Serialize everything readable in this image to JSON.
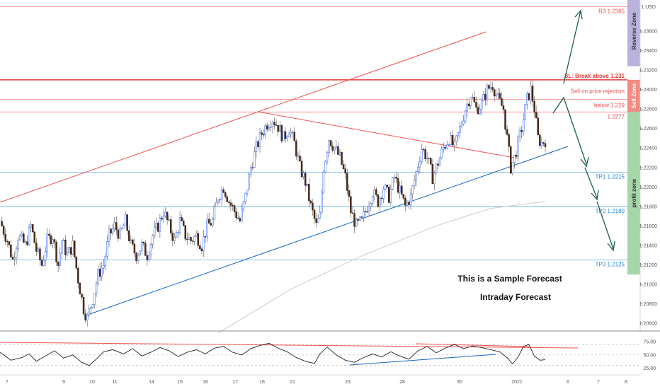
{
  "chart_data": [
    {
      "type": "candlestick",
      "title": "",
      "currency": "1 USD",
      "x_tick_labels": [
        "7",
        "9",
        "10",
        "11",
        "14",
        "15",
        "16",
        "17",
        "18",
        "21",
        "23",
        "28",
        "30",
        "2021",
        "6",
        "7",
        "8"
      ],
      "y_tick_labels": [
        "1.20600",
        "1.20800",
        "1.21000",
        "1.21200",
        "1.21400",
        "1.21600",
        "1.21800",
        "1.22000",
        "1.22200",
        "1.22400",
        "1.22600",
        "1.22800",
        "1.23000",
        "1.23200",
        "1.23400",
        "1.23600"
      ],
      "ylim": [
        1.2052,
        1.2392
      ],
      "grid": false,
      "price_path": [
        [
          0,
          1.2165
        ],
        [
          4,
          1.2145
        ],
        [
          7,
          1.2125
        ],
        [
          10,
          1.215
        ],
        [
          14,
          1.214
        ],
        [
          17,
          1.216
        ],
        [
          20,
          1.2135
        ],
        [
          23,
          1.212
        ],
        [
          26,
          1.2145
        ],
        [
          29,
          1.215
        ],
        [
          32,
          1.212
        ],
        [
          34,
          1.2145
        ],
        [
          37,
          1.213
        ],
        [
          40,
          1.214
        ],
        [
          43,
          1.2105
        ],
        [
          46,
          1.2075
        ],
        [
          48,
          1.2065
        ],
        [
          51,
          1.2085
        ],
        [
          54,
          1.211
        ],
        [
          57,
          1.212
        ],
        [
          60,
          1.215
        ],
        [
          63,
          1.216
        ],
        [
          66,
          1.215
        ],
        [
          69,
          1.2165
        ],
        [
          72,
          1.214
        ],
        [
          75,
          1.213
        ],
        [
          78,
          1.214
        ],
        [
          81,
          1.213
        ],
        [
          84,
          1.215
        ],
        [
          87,
          1.216
        ],
        [
          90,
          1.2175
        ],
        [
          93,
          1.216
        ],
        [
          96,
          1.2145
        ],
        [
          99,
          1.2165
        ],
        [
          102,
          1.215
        ],
        [
          105,
          1.2145
        ],
        [
          108,
          1.215
        ],
        [
          111,
          1.214
        ],
        [
          114,
          1.216
        ],
        [
          117,
          1.2165
        ],
        [
          120,
          1.219
        ],
        [
          123,
          1.22
        ],
        [
          126,
          1.2185
        ],
        [
          129,
          1.2175
        ],
        [
          132,
          1.2165
        ],
        [
          135,
          1.219
        ],
        [
          138,
          1.222
        ],
        [
          141,
          1.224
        ],
        [
          144,
          1.2255
        ],
        [
          147,
          1.2265
        ],
        [
          150,
          1.227
        ],
        [
          153,
          1.2262
        ],
        [
          156,
          1.225
        ],
        [
          159,
          1.226
        ],
        [
          162,
          1.2245
        ],
        [
          165,
          1.222
        ],
        [
          168,
          1.2205
        ],
        [
          171,
          1.218
        ],
        [
          174,
          1.216
        ],
        [
          176,
          1.217
        ],
        [
          178,
          1.222
        ],
        [
          181,
          1.225
        ],
        [
          184,
          1.224
        ],
        [
          187,
          1.223
        ],
        [
          190,
          1.221
        ],
        [
          193,
          1.2175
        ],
        [
          196,
          1.216
        ],
        [
          199,
          1.2165
        ],
        [
          202,
          1.218
        ],
        [
          205,
          1.2195
        ],
        [
          208,
          1.2185
        ],
        [
          211,
          1.22
        ],
        [
          214,
          1.219
        ],
        [
          217,
          1.221
        ],
        [
          220,
          1.2195
        ],
        [
          223,
          1.218
        ],
        [
          226,
          1.219
        ],
        [
          229,
          1.2215
        ],
        [
          232,
          1.224
        ],
        [
          235,
          1.223
        ],
        [
          238,
          1.221
        ],
        [
          241,
          1.2225
        ],
        [
          244,
          1.224
        ],
        [
          247,
          1.225
        ],
        [
          250,
          1.224
        ],
        [
          253,
          1.226
        ],
        [
          256,
          1.228
        ],
        [
          259,
          1.2295
        ],
        [
          262,
          1.228
        ],
        [
          265,
          1.2285
        ],
        [
          268,
          1.23
        ],
        [
          271,
          1.2305
        ],
        [
          274,
          1.229
        ],
        [
          277,
          1.228
        ],
        [
          279,
          1.225
        ],
        [
          281,
          1.222
        ],
        [
          283,
          1.223
        ],
        [
          285,
          1.2245
        ],
        [
          287,
          1.226
        ],
        [
          290,
          1.229
        ],
        [
          292,
          1.23
        ],
        [
          294,
          1.228
        ],
        [
          296,
          1.225
        ],
        [
          298,
          1.2245
        ],
        [
          300,
          1.2248
        ]
      ],
      "price_series_start": "7",
      "price_series_end": "2021",
      "moving_average": [
        [
          120,
          1.205
        ],
        [
          160,
          1.2095
        ],
        [
          200,
          1.213
        ],
        [
          240,
          1.216
        ],
        [
          270,
          1.2178
        ],
        [
          300,
          1.2185
        ]
      ],
      "levels": [
        {
          "label": "R3 1.2385",
          "value": 1.2385,
          "color": "#ef5350"
        },
        {
          "label": "SL: Break above 1.231",
          "value": 1.231,
          "color": "#e53935",
          "bold": true
        },
        {
          "label": "Sell on price rejection",
          "value": 1.229,
          "color": "#ef5350"
        },
        {
          "label": "below  1.229",
          "value": 1.229,
          "color": "#ef5350"
        },
        {
          "label": "1.2277",
          "value": 1.2277,
          "color": "#ef5350"
        },
        {
          "label": "TP1 1.2215",
          "value": 1.2215,
          "color": "#1e88e5"
        },
        {
          "label": "TP2 1.2180",
          "value": 1.218,
          "color": "#1e88e5"
        },
        {
          "label": "TP3 1.2125",
          "value": 1.2125,
          "color": "#1e88e5"
        }
      ],
      "zones": [
        {
          "label": "Reverse Zone",
          "from": 1.2324,
          "to": 1.2396,
          "color": "#b8b2dc"
        },
        {
          "label": "Sell Zone",
          "from": 1.2277,
          "to": 1.231,
          "color": "#f28b82"
        },
        {
          "label": "profit zone",
          "from": 1.211,
          "to": 1.2277,
          "color": "#a5d6a7"
        }
      ],
      "annotations": [
        "This is a Sample Forecast",
        "Intraday Forecast"
      ]
    },
    {
      "type": "line",
      "indicator": "RSI",
      "y_tick_labels": [
        "75.00",
        "50.00",
        "25.00"
      ],
      "ylim": [
        15,
        90
      ],
      "reference_lines": [
        70,
        50,
        30
      ],
      "values": [
        [
          0,
          55
        ],
        [
          6,
          40
        ],
        [
          12,
          45
        ],
        [
          16,
          52
        ],
        [
          20,
          38
        ],
        [
          25,
          48
        ],
        [
          30,
          58
        ],
        [
          35,
          44
        ],
        [
          40,
          50
        ],
        [
          45,
          36
        ],
        [
          49,
          30
        ],
        [
          53,
          42
        ],
        [
          57,
          56
        ],
        [
          62,
          60
        ],
        [
          68,
          52
        ],
        [
          73,
          62
        ],
        [
          78,
          48
        ],
        [
          83,
          55
        ],
        [
          88,
          64
        ],
        [
          93,
          58
        ],
        [
          98,
          47
        ],
        [
          103,
          55
        ],
        [
          108,
          60
        ],
        [
          113,
          52
        ],
        [
          118,
          63
        ],
        [
          123,
          66
        ],
        [
          128,
          55
        ],
        [
          133,
          50
        ],
        [
          138,
          62
        ],
        [
          143,
          68
        ],
        [
          148,
          72
        ],
        [
          153,
          63
        ],
        [
          158,
          56
        ],
        [
          163,
          45
        ],
        [
          168,
          38
        ],
        [
          173,
          34
        ],
        [
          176,
          52
        ],
        [
          180,
          65
        ],
        [
          185,
          50
        ],
        [
          190,
          40
        ],
        [
          195,
          36
        ],
        [
          200,
          45
        ],
        [
          205,
          52
        ],
        [
          210,
          46
        ],
        [
          215,
          56
        ],
        [
          220,
          48
        ],
        [
          225,
          42
        ],
        [
          230,
          58
        ],
        [
          235,
          66
        ],
        [
          240,
          54
        ],
        [
          245,
          63
        ],
        [
          250,
          70
        ],
        [
          255,
          62
        ],
        [
          260,
          67
        ],
        [
          265,
          64
        ],
        [
          270,
          60
        ],
        [
          275,
          56
        ],
        [
          279,
          45
        ],
        [
          282,
          33
        ],
        [
          285,
          46
        ],
        [
          288,
          66
        ],
        [
          291,
          70
        ],
        [
          294,
          48
        ],
        [
          297,
          40
        ],
        [
          300,
          41
        ]
      ]
    }
  ]
}
